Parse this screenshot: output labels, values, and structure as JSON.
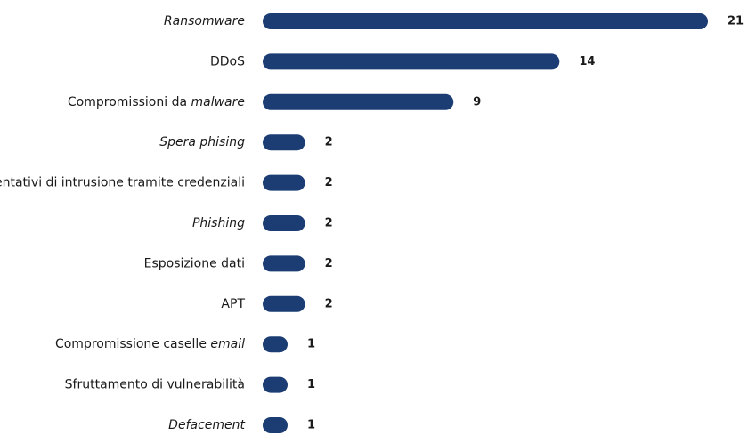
{
  "chart_data": {
    "type": "bar",
    "orientation": "horizontal",
    "color": "#1b3d73",
    "categories": [
      [
        {
          "text": "Ransomware",
          "italic": true
        }
      ],
      [
        {
          "text": "DDoS"
        }
      ],
      [
        {
          "text": "Compromissioni da "
        },
        {
          "text": "malware",
          "italic": true
        }
      ],
      [
        {
          "text": "Spera phising",
          "italic": true
        }
      ],
      [
        {
          "text": "Tentativi di intrusione tramite credenziali"
        }
      ],
      [
        {
          "text": "Phishing",
          "italic": true
        }
      ],
      [
        {
          "text": "Esposizione dati"
        }
      ],
      [
        {
          "text": "APT"
        }
      ],
      [
        {
          "text": "Compromissione caselle "
        },
        {
          "text": "email",
          "italic": true
        }
      ],
      [
        {
          "text": "Sfruttamento di vulnerabilità"
        }
      ],
      [
        {
          "text": "Defacement",
          "italic": true
        }
      ]
    ],
    "values": [
      21,
      14,
      9,
      2,
      2,
      2,
      2,
      2,
      1,
      1,
      1
    ]
  }
}
